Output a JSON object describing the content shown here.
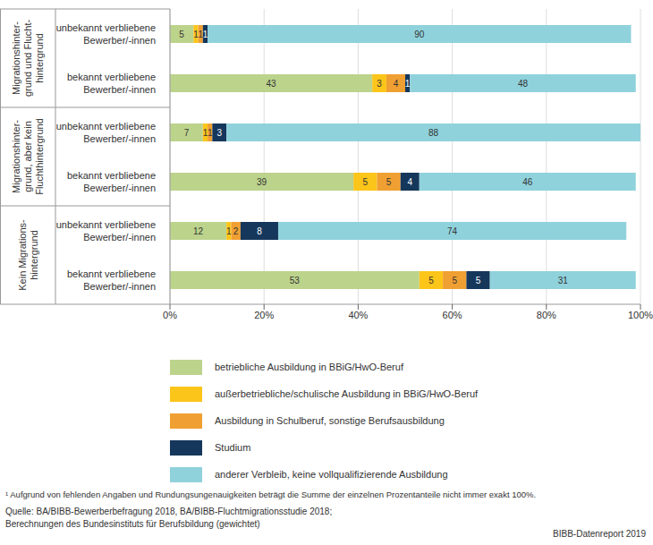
{
  "chart_data": {
    "type": "bar",
    "orientation": "horizontal",
    "stacked": true,
    "data_labels": true,
    "grid": true,
    "categories": [
      "unbekannt verbliebene Bewerber/-innen",
      "bekannt verbliebene Bewerber/-innen",
      "unbekannt verbliebene Bewerber/-innen",
      "bekannt verbliebene Bewerber/-innen",
      "unbekannt verbliebene Bewerber/-innen",
      "bekannt verbliebene Bewerber/-innen"
    ],
    "groups": [
      [
        "Migrationshinter-",
        "grund und Flucht-",
        "hintergrund"
      ],
      [
        "Migrationshinter-",
        "grund, aber kein",
        "Fluchthintergrund"
      ],
      [
        "Kein Migrations-",
        "hintergrund"
      ]
    ],
    "series": [
      {
        "name": "betriebliche Ausbildung in BBiG/HwO-Beruf",
        "color": "#bcd38c",
        "values": [
          5,
          43,
          7,
          39,
          12,
          53
        ]
      },
      {
        "name": "außerbetriebliche/schulische Ausbildung in BBiG/HwO-Beruf",
        "color": "#fcc51a",
        "values": [
          1,
          3,
          1,
          5,
          1,
          5
        ]
      },
      {
        "name": "Ausbildung in Schulberuf, sonstige Berufsausbildung",
        "color": "#f0a032",
        "values": [
          1,
          4,
          1,
          5,
          2,
          5
        ]
      },
      {
        "name": "Studium",
        "color": "#16375c",
        "values": [
          1,
          1,
          3,
          4,
          8,
          5
        ]
      },
      {
        "name": "anderer Verbleib, keine vollqualifizierende Ausbildung",
        "color": "#8fd2dc",
        "values": [
          90,
          48,
          88,
          46,
          74,
          31
        ]
      }
    ],
    "xlim": [
      0,
      100
    ],
    "xticks": [
      {
        "value": 0,
        "label": "0%"
      },
      {
        "value": 20,
        "label": "20%"
      },
      {
        "value": 40,
        "label": "40%"
      },
      {
        "value": 60,
        "label": "60%"
      },
      {
        "value": 80,
        "label": "80%"
      },
      {
        "value": 100,
        "label": "100%"
      }
    ],
    "footnote": "¹ Aufgrund von fehlenden Angaben und Rundungsungenauigkeiten beträgt die Summe der einzelnen Prozentanteile nicht immer exakt 100%.",
    "source": [
      "Quelle: BA/BIBB-Bewerberbefragung 2018, BA/BIBB-Fluchtmigrationsstudie 2018;",
      "Berechnungen des Bundesinstituts für Berufsbildung (gewichtet)"
    ],
    "credit": "BIBB-Datenreport 2019"
  }
}
